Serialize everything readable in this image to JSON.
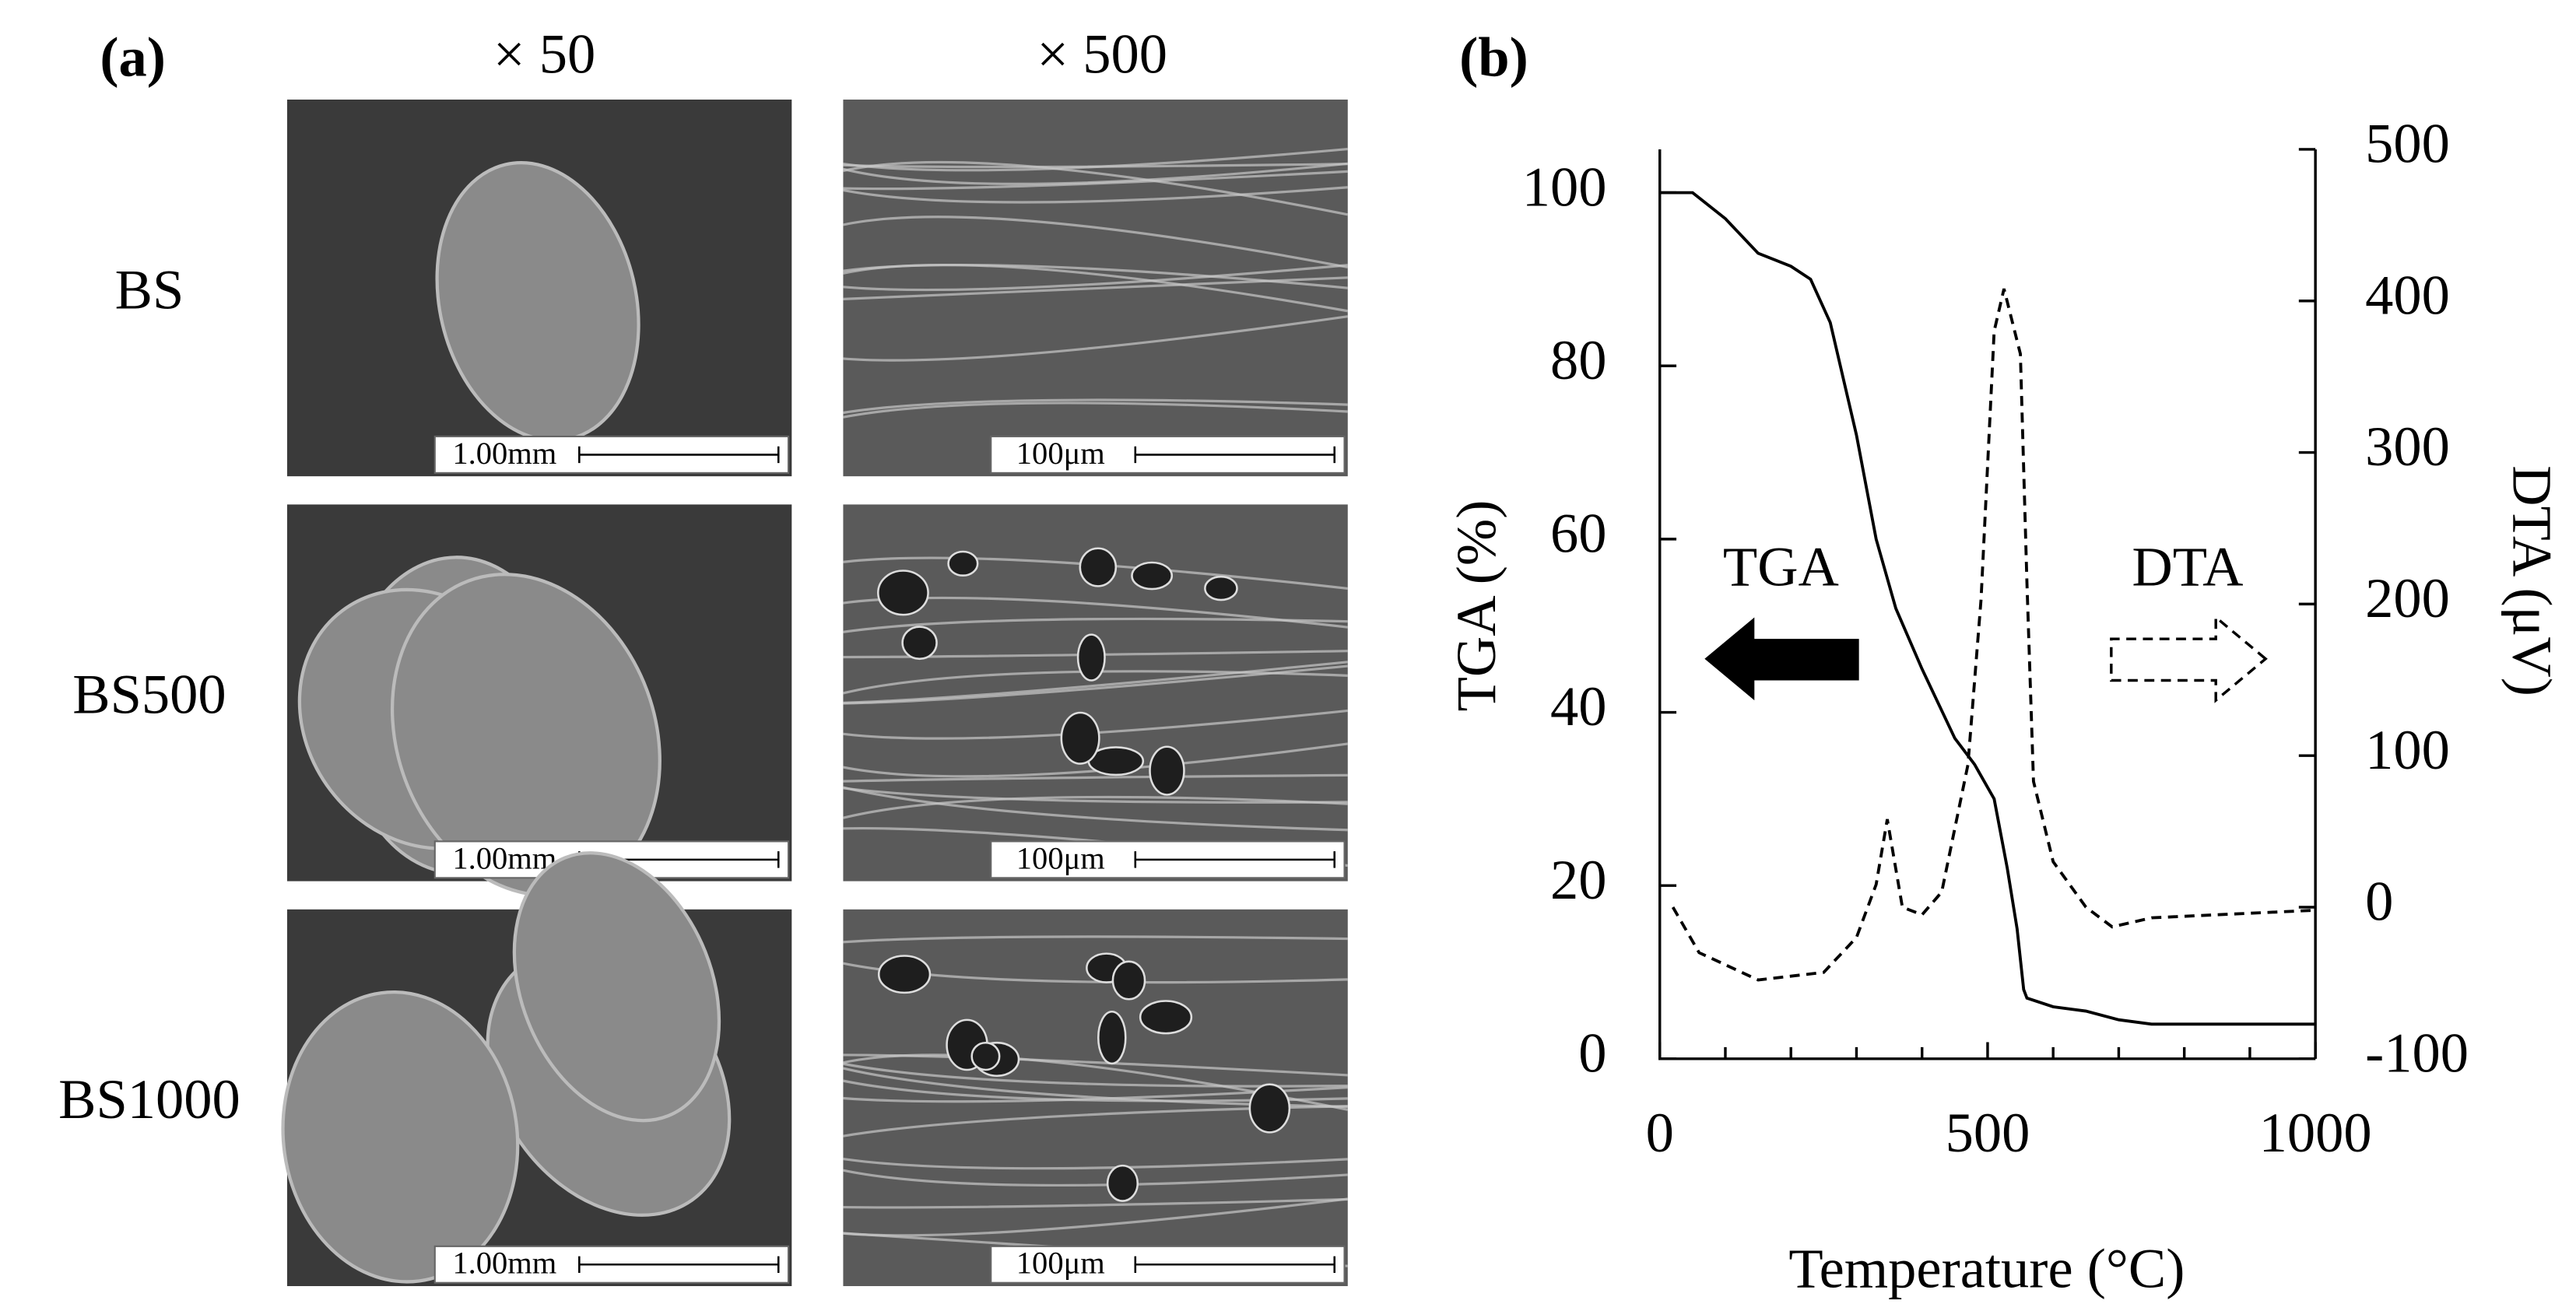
{
  "panel_a": {
    "label": "(a)",
    "columns": [
      "× 50",
      "× 500"
    ],
    "rows": [
      "BS",
      "BS500",
      "BS1000"
    ],
    "scale_bars": [
      [
        "1.00mm",
        "100μm"
      ],
      [
        "1.00mm",
        "100μm"
      ],
      [
        "1.00mm",
        "100μm"
      ]
    ]
  },
  "chart_data": {
    "type": "line",
    "panel_label": "(b)",
    "x_label": "Temperature (°C)",
    "y_label": "TGA (%)",
    "y2_label": "DTA (μV)",
    "xlim": [
      0,
      1000
    ],
    "xticks": [
      0,
      500,
      1000
    ],
    "xminorticks": [
      100,
      200,
      300,
      400,
      600,
      700,
      800,
      900
    ],
    "ylim": [
      0,
      105
    ],
    "yticks": [
      0,
      20,
      40,
      60,
      80,
      100
    ],
    "y2lim": [
      -100,
      500
    ],
    "y2ticks": [
      -100,
      0,
      100,
      200,
      300,
      400,
      500
    ],
    "annotations": [
      "TGA",
      "DTA"
    ],
    "series": [
      {
        "name": "TGA",
        "color": "#000000",
        "dash": false,
        "x": [
          0,
          50,
          100,
          150,
          200,
          230,
          260,
          300,
          330,
          360,
          400,
          450,
          480,
          510,
          530,
          545,
          555,
          560,
          600,
          650,
          700,
          750,
          1000
        ],
        "values": [
          100,
          100,
          97,
          93,
          91.5,
          90,
          85,
          72,
          60,
          52,
          45,
          37,
          34,
          30,
          22,
          15,
          8,
          7,
          6,
          5.5,
          4.5,
          4,
          4
        ]
      },
      {
        "name": "DTA",
        "color": "#000000",
        "dash": true,
        "axis": "y2",
        "x": [
          20,
          60,
          150,
          250,
          300,
          330,
          347,
          370,
          400,
          430,
          470,
          490,
          510,
          525,
          550,
          560,
          570,
          600,
          650,
          690,
          750,
          1000
        ],
        "values": [
          0,
          -30,
          -48,
          -43,
          -20,
          15,
          58,
          0,
          -5,
          10,
          94,
          203,
          380,
          408,
          365,
          214,
          83,
          30,
          0,
          -13,
          -7,
          -2
        ]
      }
    ]
  }
}
